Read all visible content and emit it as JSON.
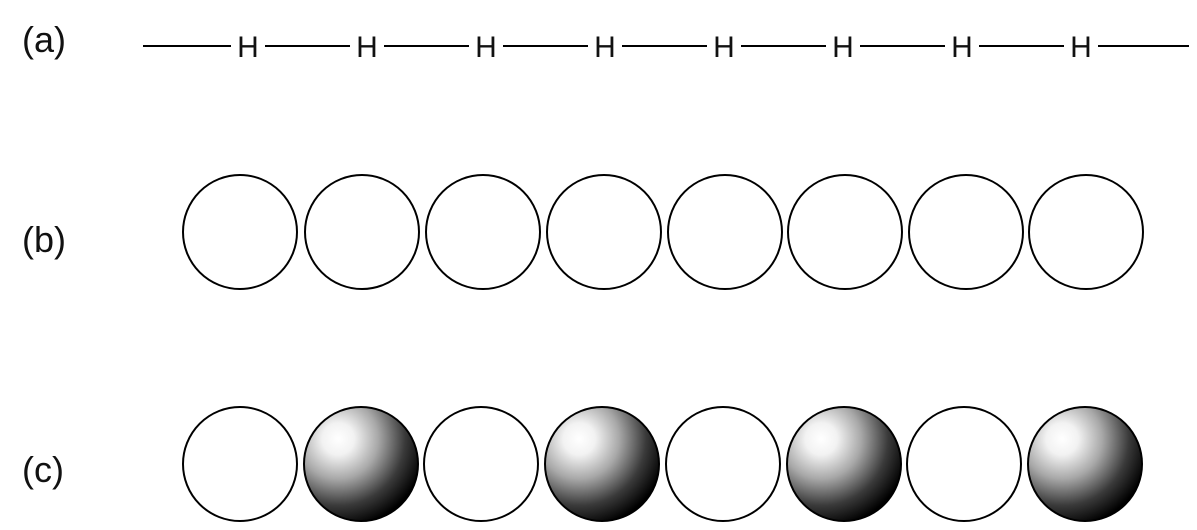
{
  "panels": [
    {
      "label": "(a)"
    },
    {
      "label": "(b)"
    },
    {
      "label": "(c)"
    }
  ],
  "chain": {
    "atom_symbol": "H",
    "atom_count": 8
  },
  "spheres_b": [
    "plain",
    "plain",
    "plain",
    "plain",
    "plain",
    "plain",
    "plain",
    "plain"
  ],
  "spheres_c": [
    "plain",
    "shaded",
    "plain",
    "shaded",
    "plain",
    "shaded",
    "plain",
    "shaded"
  ],
  "colors": {
    "line": "#000000",
    "text": "#111111",
    "sphere_fill": "#ffffff",
    "shade_dark": "#000000",
    "shade_light": "#ffffff"
  }
}
